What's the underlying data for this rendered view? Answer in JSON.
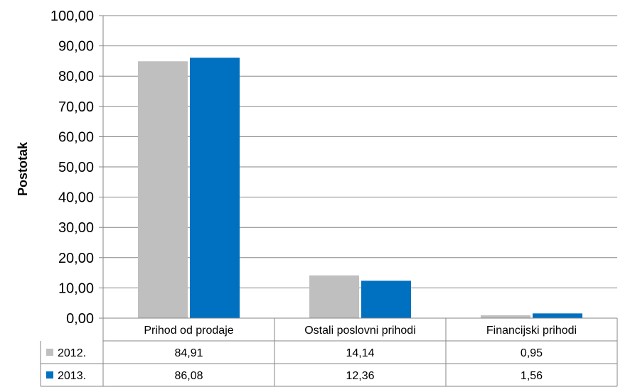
{
  "chart_data": {
    "type": "bar",
    "title": "",
    "xlabel": "",
    "ylabel": "Postotak",
    "ylim": [
      0,
      100
    ],
    "y_ticks": [
      "0,00",
      "10,00",
      "20,00",
      "30,00",
      "40,00",
      "50,00",
      "60,00",
      "70,00",
      "80,00",
      "90,00",
      "100,00"
    ],
    "grid": true,
    "legend": "data-table",
    "categories": [
      "Prihod od prodaje",
      "Ostali poslovni prihodi",
      "Financijski prihodi"
    ],
    "series": [
      {
        "name": "2012.",
        "color": "#bfbfbf",
        "values": [
          84.91,
          14.14,
          0.95
        ],
        "labels": [
          "84,91",
          "14,14",
          "0,95"
        ]
      },
      {
        "name": "2013.",
        "color": "#0070c0",
        "values": [
          86.08,
          12.36,
          1.56
        ],
        "labels": [
          "86,08",
          "12,36",
          "1,56"
        ]
      }
    ]
  }
}
